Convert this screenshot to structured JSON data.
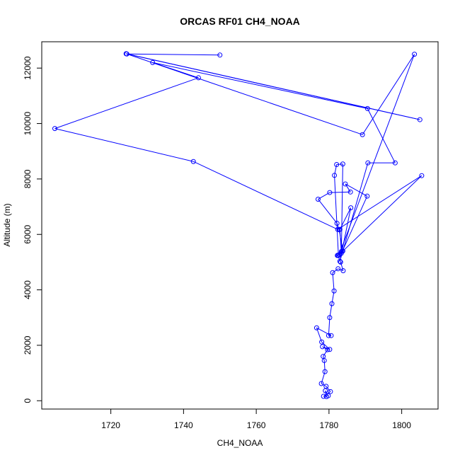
{
  "chart_data": {
    "type": "line",
    "title": "ORCAS RF01 CH4_NOAA",
    "xlabel": "CH4_NOAA",
    "ylabel": "Altitude (m)",
    "xlim": [
      1701,
      1810
    ],
    "ylim": [
      -300,
      12950
    ],
    "xticks": [
      1720,
      1740,
      1760,
      1780,
      1800
    ],
    "yticks": [
      0,
      2000,
      4000,
      6000,
      8000,
      10000,
      12000
    ],
    "grid": false,
    "legend": "none",
    "series_color": "#0000ff",
    "marker": "open-circle",
    "series": [
      {
        "points": [
          [
            1779.3,
            150
          ],
          [
            1779.0,
            360
          ],
          [
            1779.8,
            180
          ],
          [
            1778.5,
            160
          ],
          [
            1780.4,
            330
          ],
          [
            1779.2,
            520
          ],
          [
            1777.9,
            620
          ],
          [
            1778.9,
            1050
          ],
          [
            1778.7,
            1450
          ],
          [
            1778.4,
            1600
          ],
          [
            1779.6,
            1840
          ],
          [
            1778.2,
            1950
          ],
          [
            1780.2,
            1850
          ],
          [
            1778.0,
            2120
          ],
          [
            1776.6,
            2630
          ],
          [
            1780.6,
            2350
          ],
          [
            1779.9,
            2350
          ],
          [
            1780.2,
            3000
          ],
          [
            1780.8,
            3500
          ],
          [
            1781.4,
            3960
          ],
          [
            1781.0,
            4620
          ],
          [
            1782.5,
            4760
          ],
          [
            1783.9,
            4690
          ],
          [
            1783.2,
            5000
          ],
          [
            1782.4,
            5250
          ],
          [
            1783.4,
            5380
          ],
          [
            1782.3,
            5240
          ],
          [
            1783.8,
            5400
          ],
          [
            1782.8,
            6170
          ],
          [
            1782.2,
            6400
          ],
          [
            1777.0,
            7270
          ],
          [
            1780.2,
            7510
          ],
          [
            1785.9,
            7530
          ],
          [
            1784.5,
            7820
          ],
          [
            1790.5,
            7380
          ],
          [
            1783.7,
            5400
          ],
          [
            1782.6,
            5240
          ],
          [
            1781.5,
            8130
          ],
          [
            1782.1,
            8520
          ],
          [
            1783.8,
            8540
          ],
          [
            1783.4,
            5320
          ],
          [
            1783.0,
            6180
          ],
          [
            1786.0,
            6960
          ],
          [
            1783.0,
            5030
          ],
          [
            1790.7,
            8580
          ],
          [
            1798.2,
            8580
          ],
          [
            1790.6,
            10540
          ],
          [
            1731.5,
            12200
          ],
          [
            1744.1,
            11650
          ],
          [
            1704.6,
            9820
          ],
          [
            1742.7,
            8630
          ],
          [
            1782.4,
            6180
          ],
          [
            1805.5,
            8120
          ],
          [
            1782.8,
            5270
          ],
          [
            1803.5,
            12500
          ],
          [
            1789.2,
            9600
          ],
          [
            1724.2,
            12520
          ],
          [
            1805.0,
            10140
          ],
          [
            1724.4,
            12510
          ],
          [
            1750.0,
            12470
          ]
        ]
      }
    ]
  }
}
